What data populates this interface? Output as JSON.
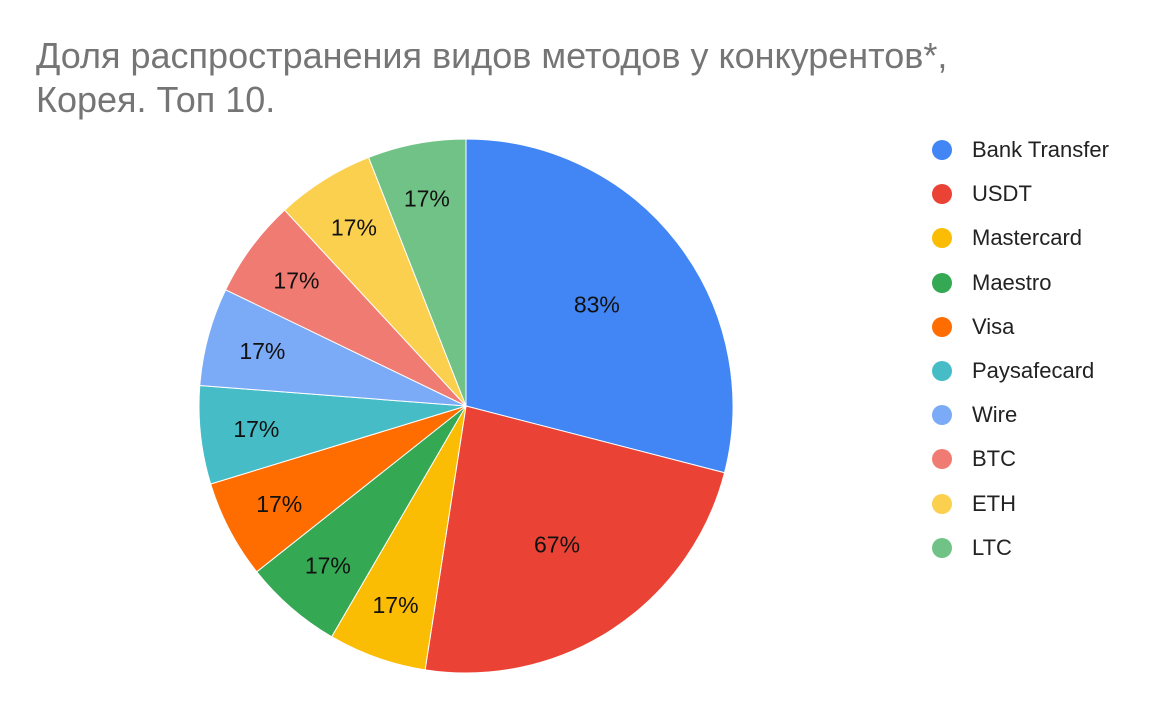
{
  "chart_data": {
    "type": "pie",
    "title_lines": [
      "Доля распространения видов методов у конкурентов*,",
      "Корея. Топ 10."
    ],
    "categories": [
      "Bank Transfer",
      "USDT",
      "Mastercard",
      "Maestro",
      "Visa",
      "Paysafecard",
      "Wire",
      "BTC",
      "ETH",
      "LTC"
    ],
    "values": [
      83,
      67,
      17,
      17,
      17,
      17,
      17,
      17,
      17,
      17
    ],
    "data_labels": [
      "83%",
      "67%",
      "17%",
      "17%",
      "17%",
      "17%",
      "17%",
      "17%",
      "17%",
      "17%"
    ],
    "colors": [
      "#4285F4",
      "#EA4335",
      "#FBBC04",
      "#34A853",
      "#FF6D01",
      "#46BDC6",
      "#7BAAF7",
      "#F07B72",
      "#FCD04F",
      "#71C287"
    ],
    "legend_position": "right"
  }
}
